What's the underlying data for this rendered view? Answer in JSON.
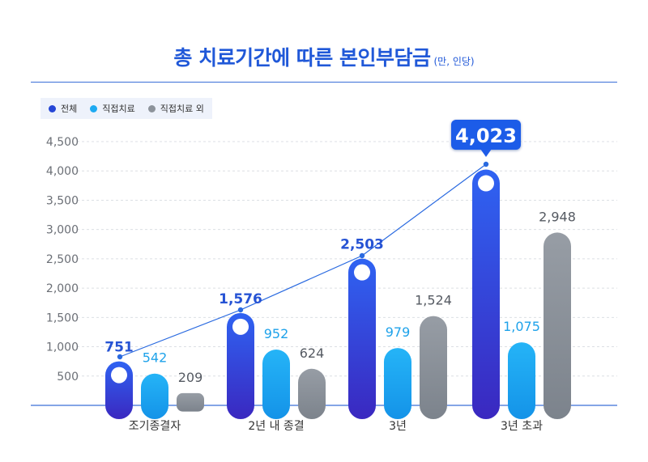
{
  "header": {
    "title": "총 치료기간에 따른 본인부담금",
    "subtitle": "(만, 인당)"
  },
  "legend": [
    {
      "label": "전체",
      "color": "#2546d6"
    },
    {
      "label": "직접치료",
      "color": "#1eaaf2"
    },
    {
      "label": "직접치료 외",
      "color": "#8d939b"
    }
  ],
  "chart_data": {
    "type": "bar",
    "title": "총 치료기간에 따른 본인부담금",
    "subtitle": "(만, 인당)",
    "categories": [
      "조기종결자",
      "2년 내 종결",
      "3년",
      "3년 초과"
    ],
    "series": [
      {
        "name": "전체",
        "values": [
          751,
          1576,
          2503,
          4023
        ],
        "labels": [
          "751",
          "1,576",
          "2,503",
          "4,023"
        ],
        "color": "#2546d6"
      },
      {
        "name": "직접치료",
        "values": [
          542,
          952,
          979,
          1075
        ],
        "labels": [
          "542",
          "952",
          "979",
          "1,075"
        ],
        "color": "#1eaaf2"
      },
      {
        "name": "직접치료 외",
        "values": [
          209,
          624,
          1524,
          2948
        ],
        "labels": [
          "209",
          "624",
          "1,524",
          "2,948"
        ],
        "color": "#8d939b"
      }
    ],
    "yticks": [
      500,
      1000,
      1500,
      2000,
      2500,
      3000,
      3500,
      4000,
      4500
    ],
    "ytick_labels": [
      "500",
      "1,000",
      "1,500",
      "2,000",
      "2,500",
      "3,000",
      "3,500",
      "4,000",
      "4,500"
    ],
    "ylim": [
      0,
      4500
    ],
    "grid": true,
    "legend_position": "top-left",
    "trend_line_series": "전체",
    "highlight": {
      "category": "3년 초과",
      "series": "전체",
      "label": "4,023"
    }
  }
}
